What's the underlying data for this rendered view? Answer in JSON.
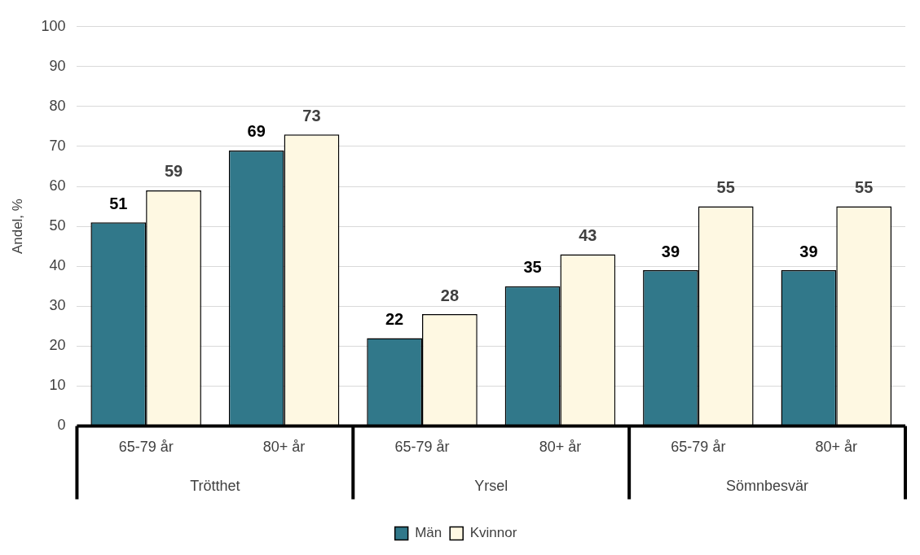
{
  "chart_data": {
    "type": "bar",
    "ylabel": "Andel, %",
    "categories": [
      "65-79 år",
      "80+ år",
      "65-79 år",
      "80+ år",
      "65-79 år",
      "80+ år"
    ],
    "annotations": [
      "Trötthet",
      "Yrsel",
      "Sömnbesvär"
    ],
    "series": [
      {
        "name": "Män",
        "color": "#31788a",
        "values": [
          51,
          69,
          22,
          35,
          39,
          39
        ]
      },
      {
        "name": "Kvinnor",
        "color": "#fef8e2",
        "values": [
          59,
          73,
          28,
          43,
          55,
          55
        ]
      }
    ],
    "ylim": [
      0,
      100
    ],
    "yticks": [
      0,
      10,
      20,
      30,
      40,
      50,
      60,
      70,
      80,
      90,
      100
    ],
    "grid": "y",
    "legend": "bottom",
    "data_labels": true
  }
}
